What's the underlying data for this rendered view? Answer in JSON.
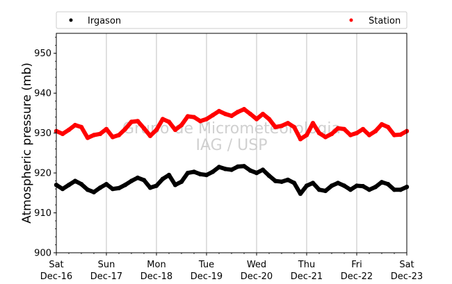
{
  "chart_data": {
    "type": "scatter",
    "title": "",
    "ylabel": "Atmospheric pressure (mb)",
    "xlabel": "",
    "ylim": [
      900,
      955
    ],
    "yticks": [
      900,
      910,
      920,
      930,
      940,
      950
    ],
    "xlim": [
      "2017-12-16",
      "2017-12-23"
    ],
    "xticks": [
      {
        "x": "2017-12-16",
        "day": "Sat",
        "date": "Dec-16"
      },
      {
        "x": "2017-12-17",
        "day": "Sun",
        "date": "Dec-17"
      },
      {
        "x": "2017-12-18",
        "day": "Mon",
        "date": "Dec-18"
      },
      {
        "x": "2017-12-19",
        "day": "Tue",
        "date": "Dec-19"
      },
      {
        "x": "2017-12-20",
        "day": "Wed",
        "date": "Dec-20"
      },
      {
        "x": "2017-12-21",
        "day": "Thu",
        "date": "Dec-21"
      },
      {
        "x": "2017-12-22",
        "day": "Fri",
        "date": "Dec-22"
      },
      {
        "x": "2017-12-23",
        "day": "Sat",
        "date": "Dec-23"
      }
    ],
    "grid": "vertical",
    "legend_position": "top",
    "watermark": [
      "Grupo de Micrometeorologia",
      "IAG / USP"
    ],
    "series": [
      {
        "name": "Irgason",
        "color": "#000000",
        "points": [
          [
            "2017-12-16 00:00",
            917.0
          ],
          [
            "2017-12-16 03:00",
            916.0
          ],
          [
            "2017-12-16 06:00",
            917.0
          ],
          [
            "2017-12-16 09:00",
            918.0
          ],
          [
            "2017-12-16 12:00",
            917.2
          ],
          [
            "2017-12-16 15:00",
            915.8
          ],
          [
            "2017-12-16 18:00",
            915.2
          ],
          [
            "2017-12-16 21:00",
            916.3
          ],
          [
            "2017-12-17 00:00",
            917.2
          ],
          [
            "2017-12-17 03:00",
            916.0
          ],
          [
            "2017-12-17 06:00",
            916.2
          ],
          [
            "2017-12-17 09:00",
            917.0
          ],
          [
            "2017-12-17 12:00",
            918.0
          ],
          [
            "2017-12-17 15:00",
            918.8
          ],
          [
            "2017-12-17 18:00",
            918.2
          ],
          [
            "2017-12-17 21:00",
            916.3
          ],
          [
            "2017-12-18 00:00",
            916.8
          ],
          [
            "2017-12-18 03:00",
            918.5
          ],
          [
            "2017-12-18 06:00",
            919.5
          ],
          [
            "2017-12-18 09:00",
            917.0
          ],
          [
            "2017-12-18 12:00",
            917.8
          ],
          [
            "2017-12-18 15:00",
            920.0
          ],
          [
            "2017-12-18 18:00",
            920.3
          ],
          [
            "2017-12-18 21:00",
            919.7
          ],
          [
            "2017-12-19 00:00",
            919.5
          ],
          [
            "2017-12-19 03:00",
            920.3
          ],
          [
            "2017-12-19 06:00",
            921.5
          ],
          [
            "2017-12-19 09:00",
            921.0
          ],
          [
            "2017-12-19 12:00",
            920.8
          ],
          [
            "2017-12-19 15:00",
            921.6
          ],
          [
            "2017-12-19 18:00",
            921.7
          ],
          [
            "2017-12-19 21:00",
            920.6
          ],
          [
            "2017-12-20 00:00",
            920.0
          ],
          [
            "2017-12-20 03:00",
            920.8
          ],
          [
            "2017-12-20 06:00",
            919.3
          ],
          [
            "2017-12-20 09:00",
            918.0
          ],
          [
            "2017-12-20 12:00",
            917.8
          ],
          [
            "2017-12-20 15:00",
            918.3
          ],
          [
            "2017-12-20 18:00",
            917.5
          ],
          [
            "2017-12-20 21:00",
            914.8
          ],
          [
            "2017-12-21 00:00",
            916.8
          ],
          [
            "2017-12-21 03:00",
            917.5
          ],
          [
            "2017-12-21 06:00",
            915.8
          ],
          [
            "2017-12-21 09:00",
            915.5
          ],
          [
            "2017-12-21 12:00",
            916.8
          ],
          [
            "2017-12-21 15:00",
            917.5
          ],
          [
            "2017-12-21 18:00",
            916.8
          ],
          [
            "2017-12-21 21:00",
            915.8
          ],
          [
            "2017-12-22 00:00",
            916.8
          ],
          [
            "2017-12-22 03:00",
            916.7
          ],
          [
            "2017-12-22 06:00",
            915.8
          ],
          [
            "2017-12-22 09:00",
            916.5
          ],
          [
            "2017-12-22 12:00",
            917.7
          ],
          [
            "2017-12-22 15:00",
            917.2
          ],
          [
            "2017-12-22 18:00",
            915.8
          ],
          [
            "2017-12-22 21:00",
            915.8
          ],
          [
            "2017-12-23 00:00",
            916.5
          ]
        ]
      },
      {
        "name": "Station",
        "color": "#ff0000",
        "points": [
          [
            "2017-12-16 00:00",
            930.5
          ],
          [
            "2017-12-16 03:00",
            929.8
          ],
          [
            "2017-12-16 06:00",
            930.8
          ],
          [
            "2017-12-16 09:00",
            932.0
          ],
          [
            "2017-12-16 12:00",
            931.5
          ],
          [
            "2017-12-16 15:00",
            928.8
          ],
          [
            "2017-12-16 18:00",
            929.5
          ],
          [
            "2017-12-16 21:00",
            929.8
          ],
          [
            "2017-12-17 00:00",
            931.0
          ],
          [
            "2017-12-17 03:00",
            929.0
          ],
          [
            "2017-12-17 06:00",
            929.5
          ],
          [
            "2017-12-17 09:00",
            931.0
          ],
          [
            "2017-12-17 12:00",
            932.8
          ],
          [
            "2017-12-17 15:00",
            933.0
          ],
          [
            "2017-12-17 18:00",
            931.2
          ],
          [
            "2017-12-17 21:00",
            929.3
          ],
          [
            "2017-12-18 00:00",
            930.8
          ],
          [
            "2017-12-18 03:00",
            933.5
          ],
          [
            "2017-12-18 06:00",
            932.8
          ],
          [
            "2017-12-18 09:00",
            930.8
          ],
          [
            "2017-12-18 12:00",
            932.0
          ],
          [
            "2017-12-18 15:00",
            934.2
          ],
          [
            "2017-12-18 18:00",
            934.0
          ],
          [
            "2017-12-18 21:00",
            933.0
          ],
          [
            "2017-12-19 00:00",
            933.5
          ],
          [
            "2017-12-19 03:00",
            934.5
          ],
          [
            "2017-12-19 06:00",
            935.5
          ],
          [
            "2017-12-19 09:00",
            934.8
          ],
          [
            "2017-12-19 12:00",
            934.3
          ],
          [
            "2017-12-19 15:00",
            935.3
          ],
          [
            "2017-12-19 18:00",
            936.0
          ],
          [
            "2017-12-19 21:00",
            934.8
          ],
          [
            "2017-12-20 00:00",
            933.5
          ],
          [
            "2017-12-20 03:00",
            934.8
          ],
          [
            "2017-12-20 06:00",
            933.5
          ],
          [
            "2017-12-20 09:00",
            931.5
          ],
          [
            "2017-12-20 12:00",
            931.8
          ],
          [
            "2017-12-20 15:00",
            932.5
          ],
          [
            "2017-12-20 18:00",
            931.5
          ],
          [
            "2017-12-20 21:00",
            928.5
          ],
          [
            "2017-12-21 00:00",
            929.5
          ],
          [
            "2017-12-21 03:00",
            932.5
          ],
          [
            "2017-12-21 06:00",
            930.0
          ],
          [
            "2017-12-21 09:00",
            929.0
          ],
          [
            "2017-12-21 12:00",
            929.8
          ],
          [
            "2017-12-21 15:00",
            931.2
          ],
          [
            "2017-12-21 18:00",
            931.0
          ],
          [
            "2017-12-21 21:00",
            929.5
          ],
          [
            "2017-12-22 00:00",
            930.0
          ],
          [
            "2017-12-22 03:00",
            931.0
          ],
          [
            "2017-12-22 06:00",
            929.5
          ],
          [
            "2017-12-22 09:00",
            930.5
          ],
          [
            "2017-12-22 12:00",
            932.2
          ],
          [
            "2017-12-22 15:00",
            931.5
          ],
          [
            "2017-12-22 18:00",
            929.5
          ],
          [
            "2017-12-22 21:00",
            929.6
          ],
          [
            "2017-12-23 00:00",
            930.5
          ]
        ]
      }
    ]
  }
}
